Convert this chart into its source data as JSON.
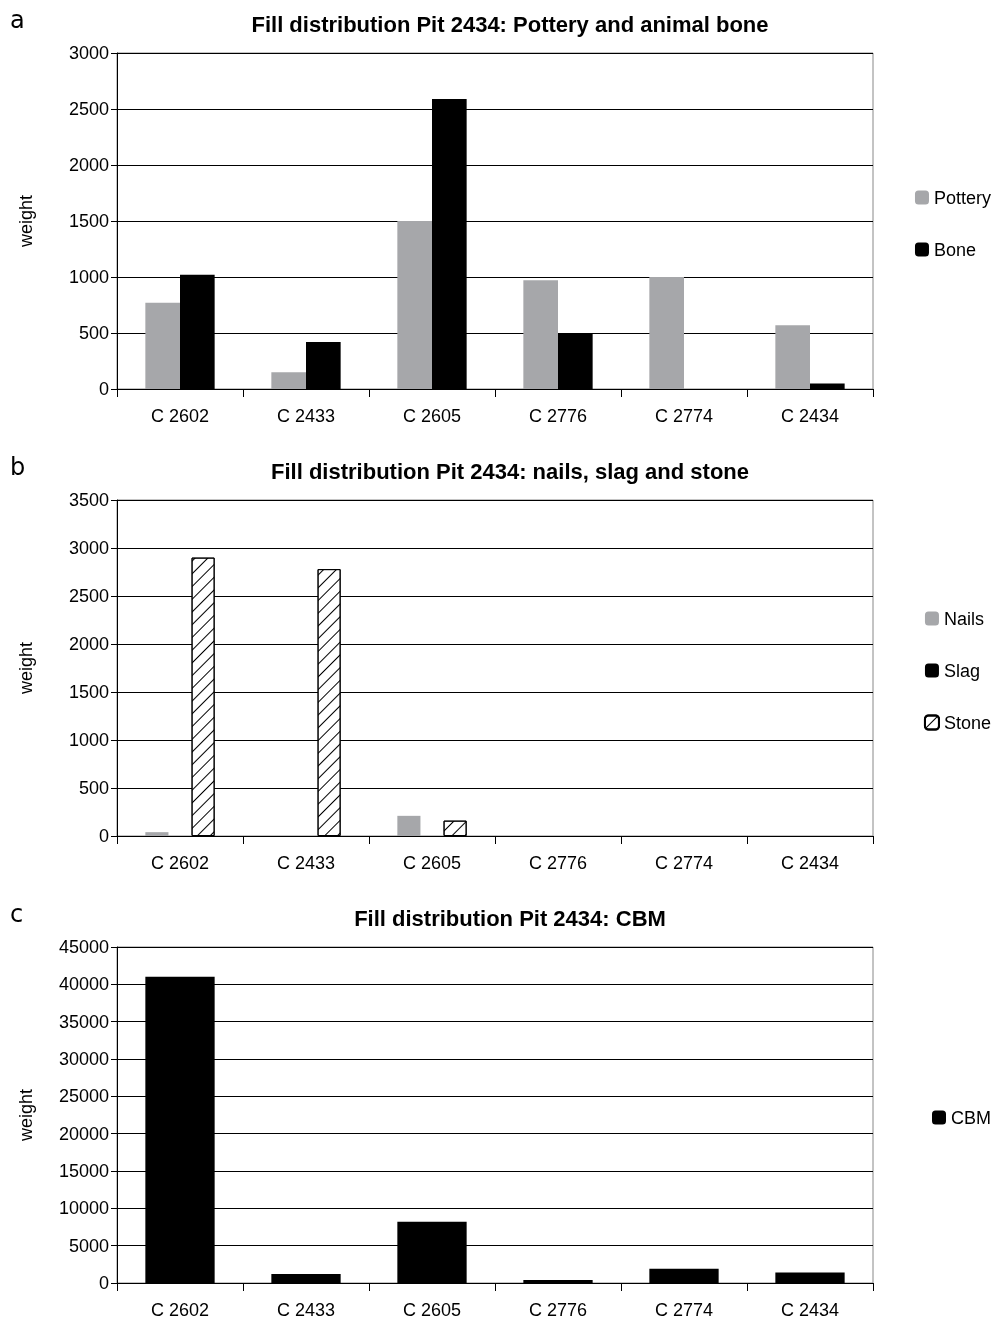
{
  "chart_data": [
    {
      "type": "bar",
      "title": "Fill distribution Pit 2434: Pottery and animal bone",
      "ylabel": "weight",
      "annotations": [
        "a"
      ],
      "categories": [
        "C 2602",
        "C 2433",
        "C 2605",
        "C 2776",
        "C 2774",
        "C 2434"
      ],
      "series": [
        {
          "name": "Pottery",
          "color": "#a6a7aa",
          "values": [
            770,
            150,
            1500,
            970,
            1000,
            570
          ]
        },
        {
          "name": "Bone",
          "color": "#000000",
          "values": [
            1020,
            420,
            2590,
            500,
            null,
            50
          ]
        }
      ],
      "ylim": [
        0,
        3000
      ],
      "yticks": [
        0,
        500,
        1000,
        1500,
        2000,
        2500,
        3000
      ],
      "grid": "y",
      "legend": "right"
    },
    {
      "type": "bar",
      "title": "Fill distribution Pit 2434: nails, slag and stone",
      "ylabel": "weight",
      "annotations": [
        "b"
      ],
      "categories": [
        "C 2602",
        "C 2433",
        "C 2605",
        "C 2776",
        "C 2774",
        "C 2434"
      ],
      "series": [
        {
          "name": "Nails",
          "color": "#a6a7aa",
          "values": [
            40,
            null,
            210,
            null,
            null,
            null
          ]
        },
        {
          "name": "Slag",
          "color": "#000000",
          "values": [
            0,
            0,
            0,
            0,
            0,
            0
          ]
        },
        {
          "name": "Stone",
          "color": "#ffffff",
          "values": [
            2900,
            2780,
            160,
            null,
            null,
            null
          ]
        }
      ],
      "ylim": [
        0,
        3500
      ],
      "yticks": [
        0,
        500,
        1000,
        1500,
        2000,
        2500,
        3000,
        3500
      ],
      "grid": "y",
      "legend": "right"
    },
    {
      "type": "bar",
      "title": "Fill distribution Pit 2434: CBM",
      "ylabel": "weight",
      "annotations": [
        "c"
      ],
      "categories": [
        "C 2602",
        "C 2433",
        "C 2605",
        "C 2776",
        "C 2774",
        "C 2434"
      ],
      "series": [
        {
          "name": "CBM",
          "color": "#000000",
          "values": [
            41000,
            1200,
            8200,
            400,
            1900,
            1400
          ]
        }
      ],
      "ylim": [
        0,
        45000
      ],
      "yticks": [
        0,
        5000,
        10000,
        15000,
        20000,
        25000,
        30000,
        35000,
        40000,
        45000
      ],
      "grid": "y",
      "legend": "right"
    }
  ]
}
